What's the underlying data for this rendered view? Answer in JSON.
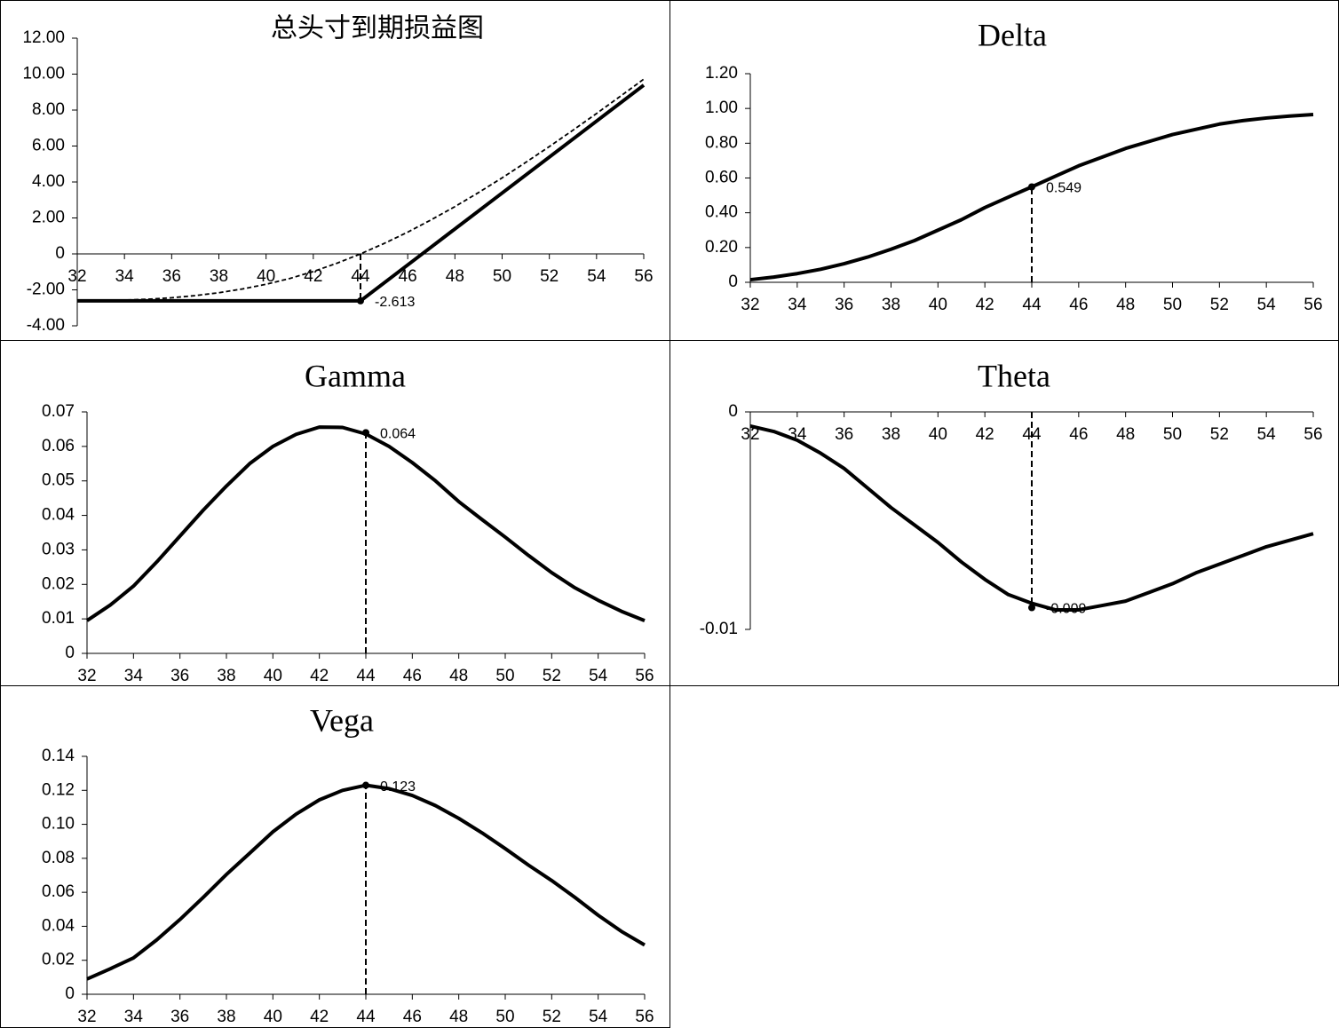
{
  "chart_data": [
    {
      "type": "line",
      "title": "总头寸到期损益图",
      "x": [
        32,
        33,
        34,
        35,
        36,
        37,
        38,
        39,
        40,
        41,
        42,
        43,
        44,
        45,
        46,
        47,
        48,
        49,
        50,
        51,
        52,
        53,
        54,
        55,
        56
      ],
      "series": [
        {
          "color": "#000000",
          "dash": false,
          "values": [
            -2.613,
            -2.613,
            -2.613,
            -2.613,
            -2.613,
            -2.613,
            -2.613,
            -2.613,
            -2.613,
            -2.613,
            -2.613,
            -2.613,
            -2.613,
            -1.613,
            -0.613,
            0.387,
            1.387,
            2.387,
            3.387,
            4.387,
            5.387,
            6.387,
            7.387,
            8.387,
            9.387
          ]
        },
        {
          "color": "#000000",
          "dash": true,
          "values": [
            -2.605,
            -2.595,
            -2.57,
            -2.52,
            -2.44,
            -2.32,
            -2.16,
            -1.95,
            -1.69,
            -1.37,
            -0.98,
            -0.52,
            0,
            0.58,
            1.21,
            1.9,
            2.63,
            3.41,
            4.23,
            5.09,
            5.97,
            6.88,
            7.81,
            8.76,
            9.72
          ]
        }
      ],
      "marker": {
        "x": 44,
        "y": -2.613
      },
      "xlim": [
        32,
        56
      ],
      "xticks": [
        32,
        34,
        36,
        38,
        40,
        42,
        44,
        46,
        48,
        50,
        52,
        54,
        56
      ],
      "ylim": [
        -4,
        12
      ],
      "yticks": [
        {
          "value": -4,
          "label": "-4.00"
        },
        {
          "value": -2,
          "label": "-2.00"
        },
        0,
        {
          "value": 2,
          "label": "2.00"
        },
        {
          "value": 4,
          "label": "4.00"
        },
        {
          "value": 6,
          "label": "6.00"
        },
        {
          "value": 8,
          "label": "8.00"
        },
        {
          "value": 10,
          "label": "10.00"
        },
        {
          "value": 12,
          "label": "12.00"
        }
      ]
    },
    {
      "type": "line",
      "title": "Delta",
      "x": [
        32,
        33,
        34,
        35,
        36,
        37,
        38,
        39,
        40,
        41,
        42,
        43,
        44,
        45,
        46,
        47,
        48,
        49,
        50,
        51,
        52,
        53,
        54,
        55,
        56
      ],
      "series": [
        {
          "color": "#000000",
          "dash": false,
          "values": [
            0.015,
            0.03,
            0.05,
            0.075,
            0.107,
            0.145,
            0.19,
            0.24,
            0.3,
            0.36,
            0.43,
            0.49,
            0.549,
            0.61,
            0.67,
            0.72,
            0.77,
            0.81,
            0.85,
            0.88,
            0.91,
            0.93,
            0.945,
            0.956,
            0.965
          ]
        }
      ],
      "marker": {
        "x": 44,
        "y": 0.549
      },
      "xlim": [
        32,
        56
      ],
      "xticks": [
        32,
        34,
        36,
        38,
        40,
        42,
        44,
        46,
        48,
        50,
        52,
        54,
        56
      ],
      "ylim": [
        0,
        1.2
      ],
      "yticks": [
        0,
        {
          "value": 0.2,
          "label": "0.20"
        },
        {
          "value": 0.4,
          "label": "0.40"
        },
        {
          "value": 0.6,
          "label": "0.60"
        },
        {
          "value": 0.8,
          "label": "0.80"
        },
        {
          "value": 1,
          "label": "1.00"
        },
        {
          "value": 1.2,
          "label": "1.20"
        }
      ]
    },
    {
      "type": "line",
      "title": "Gamma",
      "x": [
        32,
        33,
        34,
        35,
        36,
        37,
        38,
        39,
        40,
        41,
        42,
        43,
        44,
        45,
        46,
        47,
        48,
        49,
        50,
        51,
        52,
        53,
        54,
        55,
        56
      ],
      "series": [
        {
          "color": "#000000",
          "dash": false,
          "values": [
            0.0095,
            0.014,
            0.0195,
            0.0265,
            0.034,
            0.0415,
            0.0485,
            0.055,
            0.06,
            0.0635,
            0.0656,
            0.0655,
            0.0636,
            0.06,
            0.0553,
            0.05,
            0.044,
            0.0388,
            0.0337,
            0.0284,
            0.0234,
            0.019,
            0.0154,
            0.0122,
            0.0095
          ]
        }
      ],
      "marker": {
        "x": 44,
        "y": 0.064
      },
      "xlim": [
        32,
        56
      ],
      "xticks": [
        32,
        34,
        36,
        38,
        40,
        42,
        44,
        46,
        48,
        50,
        52,
        54,
        56
      ],
      "ylim": [
        0,
        0.07
      ],
      "yticks": [
        0,
        0.01,
        0.02,
        0.03,
        0.04,
        0.05,
        0.06,
        0.07
      ]
    },
    {
      "type": "line",
      "title": "Theta",
      "x": [
        32,
        33,
        34,
        35,
        36,
        37,
        38,
        39,
        40,
        41,
        42,
        43,
        44,
        45,
        46,
        47,
        48,
        49,
        50,
        51,
        52,
        53,
        54,
        55,
        56
      ],
      "series": [
        {
          "color": "#000000",
          "dash": false,
          "values": [
            -0.00065,
            -0.0009,
            -0.0013,
            -0.0019,
            -0.0026,
            -0.0035,
            -0.0044,
            -0.0052,
            -0.006,
            -0.0069,
            -0.0077,
            -0.0084,
            -0.0088,
            -0.0091,
            -0.0091,
            -0.0089,
            -0.0087,
            -0.0083,
            -0.0079,
            -0.0074,
            -0.007,
            -0.0066,
            -0.0062,
            -0.0059,
            -0.0056
          ]
        }
      ],
      "marker": {
        "x": 44,
        "y": -0.009
      },
      "xlim": [
        32,
        56
      ],
      "xticks": [
        32,
        34,
        36,
        38,
        40,
        42,
        44,
        46,
        48,
        50,
        52,
        54,
        56
      ],
      "ylim": [
        -0.01,
        0
      ],
      "yticks": [
        -0.01,
        0
      ]
    },
    {
      "type": "line",
      "title": "Vega",
      "x": [
        32,
        33,
        34,
        35,
        36,
        37,
        38,
        39,
        40,
        41,
        42,
        43,
        44,
        45,
        46,
        47,
        48,
        49,
        50,
        51,
        52,
        53,
        54,
        55,
        56
      ],
      "series": [
        {
          "color": "#000000",
          "dash": false,
          "values": [
            0.009,
            0.015,
            0.0214,
            0.032,
            0.044,
            0.057,
            0.0705,
            0.083,
            0.0956,
            0.106,
            0.1144,
            0.12,
            0.123,
            0.121,
            0.117,
            0.111,
            0.1035,
            0.095,
            0.0857,
            0.076,
            0.0669,
            0.057,
            0.0465,
            0.037,
            0.029
          ]
        }
      ],
      "marker": {
        "x": 44,
        "y": 0.123
      },
      "xlim": [
        32,
        56
      ],
      "xticks": [
        32,
        34,
        36,
        38,
        40,
        42,
        44,
        46,
        48,
        50,
        52,
        54,
        56
      ],
      "ylim": [
        0,
        0.14
      ],
      "yticks": [
        0,
        0.02,
        0.04,
        0.06,
        0.08,
        {
          "value": 0.1,
          "label": "0.10"
        },
        0.12,
        0.14
      ]
    }
  ]
}
